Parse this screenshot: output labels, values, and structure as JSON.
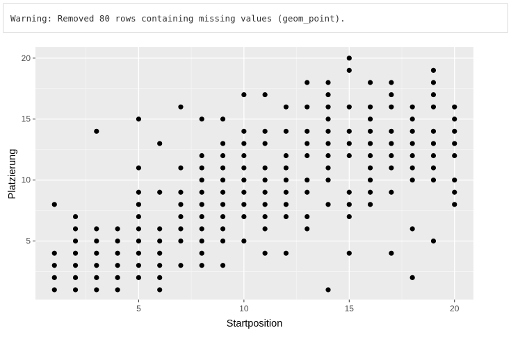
{
  "console": {
    "warning_text": "Warning: Removed 80 rows containing missing values (geom_point)."
  },
  "chart_data": {
    "type": "scatter",
    "xlabel": "Startposition",
    "ylabel": "Platzierung",
    "xlim": [
      0.1,
      20.9
    ],
    "ylim": [
      0.2,
      20.9
    ],
    "x_ticks": [
      5,
      10,
      15,
      20
    ],
    "y_ticks": [
      5,
      10,
      15,
      20
    ],
    "grid": true,
    "panel_color": "#ebebeb",
    "point_color": "#000000",
    "points": [
      [
        1,
        1
      ],
      [
        1,
        2
      ],
      [
        1,
        3
      ],
      [
        1,
        4
      ],
      [
        1,
        8
      ],
      [
        2,
        1
      ],
      [
        2,
        2
      ],
      [
        2,
        3
      ],
      [
        2,
        4
      ],
      [
        2,
        5
      ],
      [
        2,
        6
      ],
      [
        2,
        7
      ],
      [
        3,
        1
      ],
      [
        3,
        2
      ],
      [
        3,
        3
      ],
      [
        3,
        4
      ],
      [
        3,
        5
      ],
      [
        3,
        6
      ],
      [
        3,
        14
      ],
      [
        4,
        1
      ],
      [
        4,
        2
      ],
      [
        4,
        3
      ],
      [
        4,
        4
      ],
      [
        4,
        5
      ],
      [
        4,
        6
      ],
      [
        5,
        2
      ],
      [
        5,
        3
      ],
      [
        5,
        4
      ],
      [
        5,
        5
      ],
      [
        5,
        6
      ],
      [
        5,
        7
      ],
      [
        5,
        8
      ],
      [
        5,
        9
      ],
      [
        5,
        11
      ],
      [
        5,
        15
      ],
      [
        6,
        1
      ],
      [
        6,
        2
      ],
      [
        6,
        3
      ],
      [
        6,
        4
      ],
      [
        6,
        5
      ],
      [
        6,
        6
      ],
      [
        6,
        9
      ],
      [
        6,
        13
      ],
      [
        7,
        3
      ],
      [
        7,
        5
      ],
      [
        7,
        6
      ],
      [
        7,
        7
      ],
      [
        7,
        8
      ],
      [
        7,
        9
      ],
      [
        7,
        11
      ],
      [
        7,
        16
      ],
      [
        8,
        3
      ],
      [
        8,
        4
      ],
      [
        8,
        5
      ],
      [
        8,
        6
      ],
      [
        8,
        7
      ],
      [
        8,
        8
      ],
      [
        8,
        9
      ],
      [
        8,
        10
      ],
      [
        8,
        11
      ],
      [
        8,
        12
      ],
      [
        8,
        15
      ],
      [
        9,
        3
      ],
      [
        9,
        5
      ],
      [
        9,
        6
      ],
      [
        9,
        7
      ],
      [
        9,
        8
      ],
      [
        9,
        9
      ],
      [
        9,
        10
      ],
      [
        9,
        11
      ],
      [
        9,
        12
      ],
      [
        9,
        13
      ],
      [
        9,
        15
      ],
      [
        10,
        5
      ],
      [
        10,
        7
      ],
      [
        10,
        8
      ],
      [
        10,
        9
      ],
      [
        10,
        10
      ],
      [
        10,
        11
      ],
      [
        10,
        12
      ],
      [
        10,
        13
      ],
      [
        10,
        14
      ],
      [
        10,
        17
      ],
      [
        11,
        4
      ],
      [
        11,
        6
      ],
      [
        11,
        7
      ],
      [
        11,
        8
      ],
      [
        11,
        9
      ],
      [
        11,
        10
      ],
      [
        11,
        11
      ],
      [
        11,
        13
      ],
      [
        11,
        14
      ],
      [
        11,
        17
      ],
      [
        12,
        4
      ],
      [
        12,
        7
      ],
      [
        12,
        8
      ],
      [
        12,
        9
      ],
      [
        12,
        10
      ],
      [
        12,
        11
      ],
      [
        12,
        12
      ],
      [
        12,
        14
      ],
      [
        12,
        16
      ],
      [
        13,
        6
      ],
      [
        13,
        7
      ],
      [
        13,
        9
      ],
      [
        13,
        10
      ],
      [
        13,
        12
      ],
      [
        13,
        13
      ],
      [
        13,
        14
      ],
      [
        13,
        16
      ],
      [
        13,
        18
      ],
      [
        14,
        1
      ],
      [
        14,
        8
      ],
      [
        14,
        10
      ],
      [
        14,
        11
      ],
      [
        14,
        12
      ],
      [
        14,
        13
      ],
      [
        14,
        14
      ],
      [
        14,
        15
      ],
      [
        14,
        16
      ],
      [
        14,
        17
      ],
      [
        14,
        18
      ],
      [
        15,
        4
      ],
      [
        15,
        7
      ],
      [
        15,
        8
      ],
      [
        15,
        9
      ],
      [
        15,
        12
      ],
      [
        15,
        13
      ],
      [
        15,
        14
      ],
      [
        15,
        16
      ],
      [
        15,
        19
      ],
      [
        15,
        20
      ],
      [
        16,
        8
      ],
      [
        16,
        9
      ],
      [
        16,
        10
      ],
      [
        16,
        11
      ],
      [
        16,
        12
      ],
      [
        16,
        13
      ],
      [
        16,
        14
      ],
      [
        16,
        15
      ],
      [
        16,
        16
      ],
      [
        16,
        18
      ],
      [
        17,
        4
      ],
      [
        17,
        9
      ],
      [
        17,
        11
      ],
      [
        17,
        12
      ],
      [
        17,
        13
      ],
      [
        17,
        14
      ],
      [
        17,
        16
      ],
      [
        17,
        17
      ],
      [
        17,
        18
      ],
      [
        18,
        2
      ],
      [
        18,
        6
      ],
      [
        18,
        10
      ],
      [
        18,
        11
      ],
      [
        18,
        12
      ],
      [
        18,
        13
      ],
      [
        18,
        14
      ],
      [
        18,
        15
      ],
      [
        18,
        16
      ],
      [
        19,
        5
      ],
      [
        19,
        10
      ],
      [
        19,
        11
      ],
      [
        19,
        12
      ],
      [
        19,
        13
      ],
      [
        19,
        14
      ],
      [
        19,
        16
      ],
      [
        19,
        17
      ],
      [
        19,
        18
      ],
      [
        19,
        19
      ],
      [
        20,
        8
      ],
      [
        20,
        9
      ],
      [
        20,
        10
      ],
      [
        20,
        12
      ],
      [
        20,
        13
      ],
      [
        20,
        14
      ],
      [
        20,
        15
      ],
      [
        20,
        16
      ]
    ]
  }
}
